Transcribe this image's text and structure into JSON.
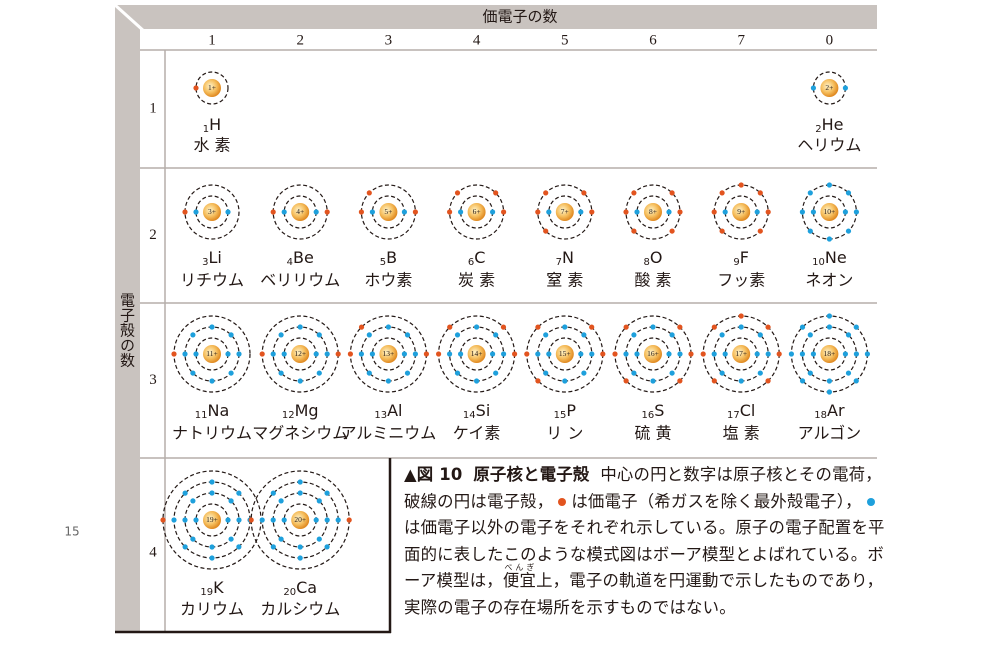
{
  "page_number": "15",
  "header": {
    "valence_label": "価電子の数",
    "shell_label": "電子殻の数",
    "columns": [
      1,
      2,
      3,
      4,
      5,
      6,
      7,
      0
    ],
    "rows": [
      1,
      2,
      3,
      4
    ]
  },
  "elements": [
    {
      "number": 1,
      "symbol": "H",
      "name": "水 素",
      "charge": "1+",
      "shells": [
        1
      ],
      "valence": 1
    },
    {
      "number": 2,
      "symbol": "He",
      "name": "ヘリウム",
      "charge": "2+",
      "shells": [
        2
      ],
      "valence": 0
    },
    {
      "number": 3,
      "symbol": "Li",
      "name": "リチウム",
      "charge": "3+",
      "shells": [
        2,
        1
      ],
      "valence": 1
    },
    {
      "number": 4,
      "symbol": "Be",
      "name": "ベリリウム",
      "charge": "4+",
      "shells": [
        2,
        2
      ],
      "valence": 2
    },
    {
      "number": 5,
      "symbol": "B",
      "name": "ホウ素",
      "charge": "5+",
      "shells": [
        2,
        3
      ],
      "valence": 3
    },
    {
      "number": 6,
      "symbol": "C",
      "name": "炭 素",
      "charge": "6+",
      "shells": [
        2,
        4
      ],
      "valence": 4
    },
    {
      "number": 7,
      "symbol": "N",
      "name": "窒 素",
      "charge": "7+",
      "shells": [
        2,
        5
      ],
      "valence": 5
    },
    {
      "number": 8,
      "symbol": "O",
      "name": "酸 素",
      "charge": "8+",
      "shells": [
        2,
        6
      ],
      "valence": 6
    },
    {
      "number": 9,
      "symbol": "F",
      "name": "フッ素",
      "charge": "9+",
      "shells": [
        2,
        7
      ],
      "valence": 7
    },
    {
      "number": 10,
      "symbol": "Ne",
      "name": "ネオン",
      "charge": "10+",
      "shells": [
        2,
        8
      ],
      "valence": 0
    },
    {
      "number": 11,
      "symbol": "Na",
      "name": "ナトリウム",
      "charge": "11+",
      "shells": [
        2,
        8,
        1
      ],
      "valence": 1
    },
    {
      "number": 12,
      "symbol": "Mg",
      "name": "マグネシウム",
      "charge": "12+",
      "shells": [
        2,
        8,
        2
      ],
      "valence": 2
    },
    {
      "number": 13,
      "symbol": "Al",
      "name": "アルミニウム",
      "charge": "13+",
      "shells": [
        2,
        8,
        3
      ],
      "valence": 3
    },
    {
      "number": 14,
      "symbol": "Si",
      "name": "ケイ素",
      "charge": "14+",
      "shells": [
        2,
        8,
        4
      ],
      "valence": 4
    },
    {
      "number": 15,
      "symbol": "P",
      "name": "リ ン",
      "charge": "15+",
      "shells": [
        2,
        8,
        5
      ],
      "valence": 5
    },
    {
      "number": 16,
      "symbol": "S",
      "name": "硫 黄",
      "charge": "16+",
      "shells": [
        2,
        8,
        6
      ],
      "valence": 6
    },
    {
      "number": 17,
      "symbol": "Cl",
      "name": "塩 素",
      "charge": "17+",
      "shells": [
        2,
        8,
        7
      ],
      "valence": 7
    },
    {
      "number": 18,
      "symbol": "Ar",
      "name": "アルゴン",
      "charge": "18+",
      "shells": [
        2,
        8,
        8
      ],
      "valence": 0
    },
    {
      "number": 19,
      "symbol": "K",
      "name": "カリウム",
      "charge": "19+",
      "shells": [
        2,
        8,
        8,
        1
      ],
      "valence": 1
    },
    {
      "number": 20,
      "symbol": "Ca",
      "name": "カルシウム",
      "charge": "20+",
      "shells": [
        2,
        8,
        8,
        2
      ],
      "valence": 2
    }
  ],
  "caption": {
    "figure": "▲図 10",
    "title": "原子核と電子殻",
    "text1": "中心の円と数字は原子核とその電荷，破線の円は電子殻，",
    "text2": "は価電子（希ガスを除く最外殻電子），",
    "text3": "は価電子以外の電子をそれぞれ示している。原子の電子配置を平面的に表したこのような模式図はボーア模型とよばれている。ボーア模型は，",
    "ruby_base": "便宜",
    "ruby_text": "べんぎ",
    "text4": "上，電子の軌道を円運動で示したものであり，実際の電子の存在場所を示すものではない。"
  }
}
